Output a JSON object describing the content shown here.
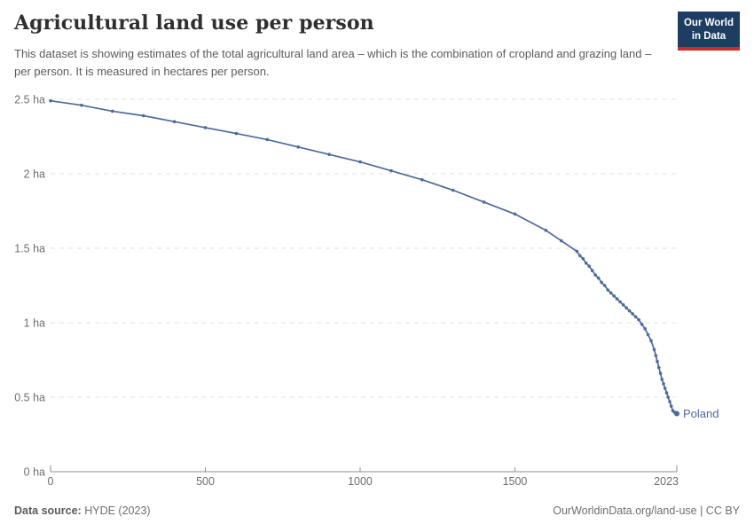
{
  "header": {
    "title": "Agricultural land use per person",
    "subtitle": "This dataset is showing estimates of the total agricultural land area – which is the combination of cropland and grazing land – per person. It is measured in hectares per person.",
    "logo": {
      "line1": "Our World",
      "line2": "in Data"
    }
  },
  "footer": {
    "source_label": "Data source:",
    "source_value": "HYDE (2023)",
    "credit": "OurWorldinData.org/land-use | CC BY"
  },
  "colors": {
    "line": "#4c6a9c",
    "series_label": "#4c6a9c",
    "grid": "#e0e0e0",
    "axis": "#8f8f8f",
    "tick_text": "#6e6e6e",
    "title_text": "#2f2f2f",
    "subtitle_text": "#5b5b5b",
    "logo_bg": "#1d3d63",
    "logo_stripe": "#cf2a27"
  },
  "chart_data": {
    "type": "line",
    "title": "Agricultural land use per person",
    "unit": "hectares per person",
    "xlabel": "",
    "ylabel": "",
    "xlim": [
      0,
      2023
    ],
    "ylim": [
      0,
      2.5
    ],
    "grid": "horizontal-dashed",
    "legend_position": "end-of-line-label",
    "x_ticks": [
      {
        "value": 0,
        "label": "0"
      },
      {
        "value": 500,
        "label": "500"
      },
      {
        "value": 1000,
        "label": "1000"
      },
      {
        "value": 1500,
        "label": "1500"
      },
      {
        "value": 2023,
        "label": "2023"
      }
    ],
    "y_ticks": [
      {
        "value": 0,
        "label": "0 ha"
      },
      {
        "value": 0.5,
        "label": "0.5 ha"
      },
      {
        "value": 1,
        "label": "1 ha"
      },
      {
        "value": 1.5,
        "label": "1.5 ha"
      },
      {
        "value": 2,
        "label": "2 ha"
      },
      {
        "value": 2.5,
        "label": "2.5 ha"
      }
    ],
    "series": [
      {
        "name": "Poland",
        "color": "#4c6a9c",
        "points": [
          [
            0,
            2.49
          ],
          [
            100,
            2.46
          ],
          [
            200,
            2.42
          ],
          [
            300,
            2.39
          ],
          [
            400,
            2.35
          ],
          [
            500,
            2.31
          ],
          [
            600,
            2.27
          ],
          [
            700,
            2.23
          ],
          [
            800,
            2.18
          ],
          [
            900,
            2.13
          ],
          [
            1000,
            2.08
          ],
          [
            1100,
            2.02
          ],
          [
            1200,
            1.96
          ],
          [
            1300,
            1.89
          ],
          [
            1400,
            1.81
          ],
          [
            1500,
            1.73
          ],
          [
            1600,
            1.62
          ],
          [
            1650,
            1.55
          ],
          [
            1700,
            1.48
          ],
          [
            1710,
            1.45
          ],
          [
            1720,
            1.43
          ],
          [
            1730,
            1.4
          ],
          [
            1740,
            1.38
          ],
          [
            1750,
            1.35
          ],
          [
            1760,
            1.32
          ],
          [
            1770,
            1.3
          ],
          [
            1780,
            1.27
          ],
          [
            1790,
            1.25
          ],
          [
            1800,
            1.22
          ],
          [
            1810,
            1.2
          ],
          [
            1820,
            1.18
          ],
          [
            1830,
            1.16
          ],
          [
            1840,
            1.14
          ],
          [
            1850,
            1.12
          ],
          [
            1860,
            1.1
          ],
          [
            1870,
            1.08
          ],
          [
            1880,
            1.06
          ],
          [
            1890,
            1.04
          ],
          [
            1900,
            1.02
          ],
          [
            1910,
            0.99
          ],
          [
            1920,
            0.96
          ],
          [
            1930,
            0.92
          ],
          [
            1940,
            0.88
          ],
          [
            1950,
            0.82
          ],
          [
            1955,
            0.78
          ],
          [
            1960,
            0.74
          ],
          [
            1965,
            0.7
          ],
          [
            1970,
            0.66
          ],
          [
            1975,
            0.62
          ],
          [
            1980,
            0.59
          ],
          [
            1985,
            0.56
          ],
          [
            1990,
            0.53
          ],
          [
            1995,
            0.5
          ],
          [
            2000,
            0.47
          ],
          [
            2005,
            0.44
          ],
          [
            2010,
            0.41
          ],
          [
            2015,
            0.4
          ],
          [
            2020,
            0.39
          ],
          [
            2023,
            0.39
          ]
        ]
      }
    ]
  }
}
